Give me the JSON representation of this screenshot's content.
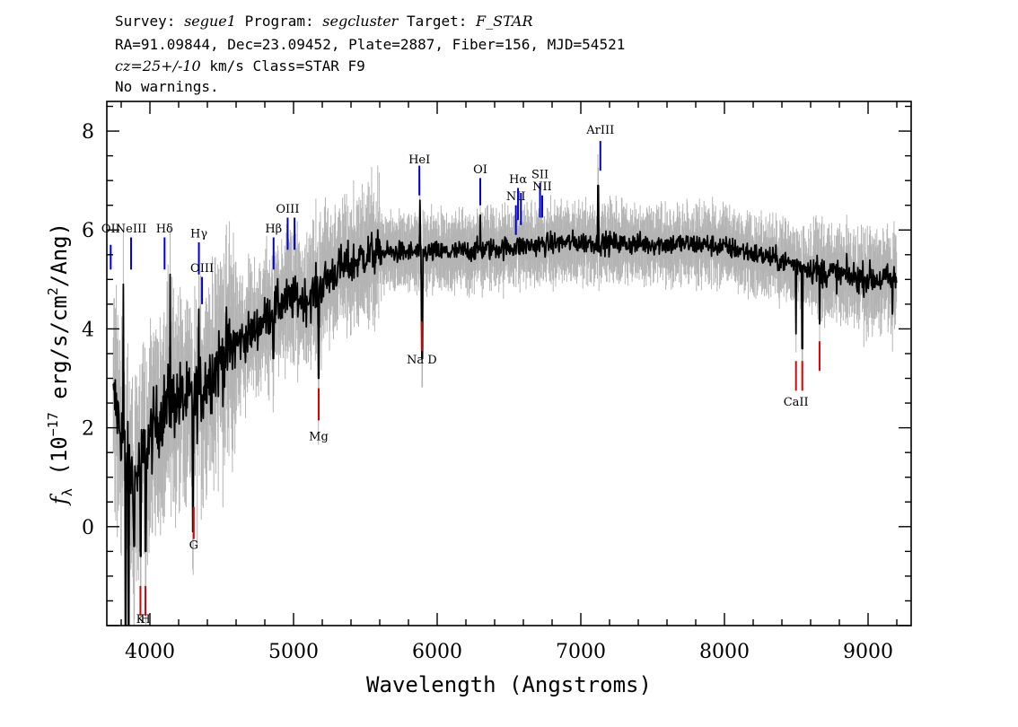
{
  "header": {
    "line1": [
      {
        "text": "Survey: ",
        "italic": false
      },
      {
        "text": "segue1",
        "italic": true
      },
      {
        "text": " Program: ",
        "italic": false
      },
      {
        "text": "segcluster",
        "italic": true
      },
      {
        "text": " Target: ",
        "italic": false
      },
      {
        "text": "F_STAR",
        "italic": true
      }
    ],
    "line2": "RA=91.09844, Dec=23.09452, Plate=2887, Fiber=156, MJD=54521",
    "line3": [
      {
        "text": "cz=25+/-10",
        "italic": true
      },
      {
        "text": " km/s Class=STAR F9",
        "italic": false
      }
    ],
    "line4": "No warnings."
  },
  "chart_data": {
    "type": "line",
    "xlabel": "Wavelength (Angstroms)",
    "ylabel": "f_λ (10^-17 erg/s/cm^2/Ang)",
    "ylabel_parts": {
      "f": "f",
      "sub": "λ",
      "a": " (10",
      "exp1": "−17",
      "b": " erg/s/cm",
      "exp2": "2",
      "c": "/Ang)"
    },
    "xlim": [
      3700,
      9300
    ],
    "ylim": [
      -2.0,
      8.6
    ],
    "xticks": [
      4000,
      5000,
      6000,
      7000,
      8000,
      9000
    ],
    "yticks": [
      0,
      2,
      4,
      6,
      8
    ],
    "x_data_range": [
      3745,
      9200
    ],
    "colors": {
      "flux": "#000000",
      "error_band": "#b4b4b4",
      "emission": "#0000cc",
      "absorption": "#dd0000"
    },
    "continuum": [
      [
        3760,
        2.5
      ],
      [
        3850,
        1.2
      ],
      [
        3900,
        1.0
      ],
      [
        3950,
        1.4
      ],
      [
        4000,
        1.8
      ],
      [
        4100,
        2.4
      ],
      [
        4200,
        2.6
      ],
      [
        4300,
        2.5
      ],
      [
        4400,
        3.0
      ],
      [
        4500,
        3.4
      ],
      [
        4600,
        3.7
      ],
      [
        4700,
        3.9
      ],
      [
        4800,
        4.2
      ],
      [
        4900,
        4.5
      ],
      [
        5000,
        4.6
      ],
      [
        5100,
        4.6
      ],
      [
        5200,
        4.9
      ],
      [
        5300,
        5.2
      ],
      [
        5400,
        5.3
      ],
      [
        5500,
        5.5
      ],
      [
        5700,
        5.55
      ],
      [
        5900,
        5.55
      ],
      [
        6100,
        5.55
      ],
      [
        6300,
        5.6
      ],
      [
        6500,
        5.65
      ],
      [
        6700,
        5.7
      ],
      [
        6900,
        5.75
      ],
      [
        7100,
        5.75
      ],
      [
        7300,
        5.72
      ],
      [
        7500,
        5.72
      ],
      [
        7700,
        5.72
      ],
      [
        7900,
        5.7
      ],
      [
        8100,
        5.6
      ],
      [
        8300,
        5.45
      ],
      [
        8500,
        5.3
      ],
      [
        8700,
        5.15
      ],
      [
        8900,
        5.05
      ],
      [
        9100,
        5.0
      ],
      [
        9200,
        5.0
      ]
    ],
    "spikes": [
      [
        3815,
        4.9
      ],
      [
        3830,
        -2.0
      ],
      [
        3852,
        -2.0
      ],
      [
        3890,
        -0.4
      ],
      [
        3935,
        -0.6
      ],
      [
        3970,
        -0.5
      ],
      [
        4140,
        5.1
      ],
      [
        4300,
        -0.1
      ],
      [
        4340,
        4.4
      ],
      [
        4860,
        3.4
      ],
      [
        5175,
        3.0
      ],
      [
        5890,
        4.2
      ],
      [
        5895,
        3.4
      ],
      [
        5880,
        6.6
      ],
      [
        6300,
        6.3
      ],
      [
        6563,
        5.8
      ],
      [
        7120,
        6.9
      ],
      [
        8498,
        3.9
      ],
      [
        8542,
        3.6
      ],
      [
        8662,
        4.1
      ],
      [
        9170,
        4.3
      ]
    ],
    "emission_lines": [
      {
        "label": "OII",
        "x": 3727,
        "y_label": 5.95,
        "tick_y": [
          5.2,
          5.7
        ]
      },
      {
        "label": "NeIII",
        "x": 3869,
        "y_label": 5.95,
        "tick_y": [
          5.2,
          5.85
        ]
      },
      {
        "label": "Hδ",
        "x": 4102,
        "y_label": 5.95,
        "tick_y": [
          5.2,
          5.85
        ]
      },
      {
        "label": "Hγ",
        "x": 4341,
        "y_label": 5.85,
        "tick_y": [
          5.1,
          5.75
        ]
      },
      {
        "label": "OIII",
        "x": 4363,
        "y_label": 5.15,
        "tick_y": [
          4.5,
          5.05
        ]
      },
      {
        "label": "Hβ",
        "x": 4861,
        "y_label": 5.95,
        "tick_y": [
          5.2,
          5.85
        ]
      },
      {
        "label": "OIII",
        "x": 4959,
        "y_label": 6.35,
        "tick_y": [
          5.6,
          6.25
        ]
      },
      {
        "label": "",
        "x": 5007,
        "y_label": 6.35,
        "tick_y": [
          5.6,
          6.25
        ]
      },
      {
        "label": "HeI",
        "x": 5876,
        "y_label": 7.35,
        "tick_y": [
          6.7,
          7.3
        ]
      },
      {
        "label": "OI",
        "x": 6300,
        "y_label": 7.15,
        "tick_y": [
          6.5,
          7.05
        ]
      },
      {
        "label": "NII",
        "x": 6548,
        "y_label": 6.6,
        "tick_y": [
          5.9,
          6.5
        ]
      },
      {
        "label": "Hα",
        "x": 6563,
        "y_label": 6.95,
        "tick_y": [
          6.2,
          6.85
        ]
      },
      {
        "label": "",
        "x": 6583,
        "y_label": 6.95,
        "tick_y": [
          6.1,
          6.75
        ]
      },
      {
        "label": "SII",
        "x": 6716,
        "y_label": 7.05,
        "tick_y": [
          6.25,
          6.95
        ]
      },
      {
        "label": "NII",
        "x": 6731,
        "y_label": 6.8,
        "tick_y": [
          6.25,
          6.7
        ]
      },
      {
        "label": "ArIII",
        "x": 7136,
        "y_label": 7.95,
        "tick_y": [
          7.2,
          7.8
        ]
      }
    ],
    "absorption_lines": [
      {
        "label": "K",
        "x": 3934,
        "y_label": -1.95,
        "tick_y": [
          -1.8,
          -1.2
        ]
      },
      {
        "label": "H",
        "x": 3969,
        "y_label": -1.95,
        "tick_y": [
          -1.8,
          -1.2
        ]
      },
      {
        "label": "G",
        "x": 4305,
        "y_label": -0.45,
        "tick_y": [
          -0.25,
          0.4
        ]
      },
      {
        "label": "Mg",
        "x": 5175,
        "y_label": 1.75,
        "tick_y": [
          2.15,
          2.8
        ]
      },
      {
        "label": "Na D",
        "x": 5893,
        "y_label": 3.3,
        "tick_y": [
          3.55,
          4.15
        ]
      },
      {
        "label": "CaII",
        "x": 8498,
        "y_label": 2.45,
        "tick_y": [
          2.75,
          3.35
        ]
      },
      {
        "label": "",
        "x": 8542,
        "y_label": 2.45,
        "tick_y": [
          2.75,
          3.35
        ]
      },
      {
        "label": "",
        "x": 8662,
        "y_label": 2.45,
        "tick_y": [
          3.15,
          3.75
        ]
      }
    ]
  }
}
